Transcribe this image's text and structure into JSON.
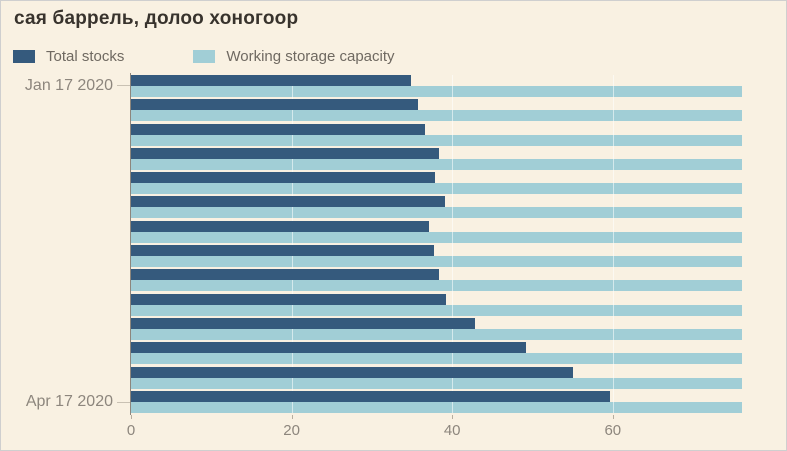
{
  "title": "сая баррель, долоо хоногоор",
  "legend": {
    "items": [
      {
        "label": "Total stocks",
        "color": "#355a7d"
      },
      {
        "label": "Working storage capacity",
        "color": "#a1ced6"
      }
    ]
  },
  "colors": {
    "background": "#f9f1e2",
    "total_stocks_bar": "#355a7d",
    "capacity_bar": "#a1ced6",
    "axis": "#8d867d",
    "text_muted": "#6f6961"
  },
  "chart_data": {
    "type": "bar",
    "orientation": "horizontal",
    "title": "сая баррель, долоо хоногоор",
    "row_count": 14,
    "y_axis_labels_visible": [
      "Jan 17 2020",
      "Apr 17 2020"
    ],
    "x_ticks": [
      0,
      20,
      40,
      60
    ],
    "xlim": [
      0,
      76.7
    ],
    "grid": "vertical",
    "legend_position": "top",
    "series": [
      {
        "name": "Total stocks",
        "color": "#355a7d",
        "values": [
          34.9,
          35.7,
          36.6,
          38.3,
          37.9,
          39.1,
          37.1,
          37.7,
          38.4,
          39.2,
          42.8,
          49.2,
          55.0,
          59.7
        ]
      },
      {
        "name": "Working storage capacity",
        "color": "#a1ced6",
        "values": [
          76.1,
          76.1,
          76.1,
          76.1,
          76.1,
          76.1,
          76.1,
          76.1,
          76.1,
          76.1,
          76.1,
          76.1,
          76.1,
          76.1
        ]
      }
    ]
  }
}
